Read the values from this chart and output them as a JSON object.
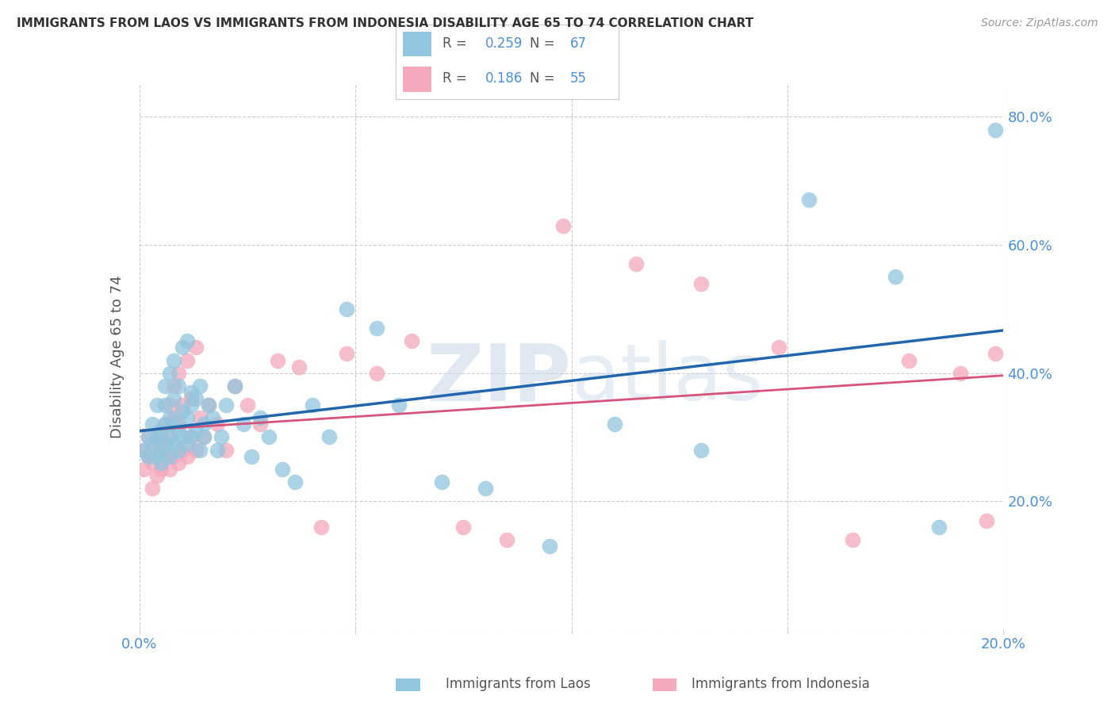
{
  "title": "IMMIGRANTS FROM LAOS VS IMMIGRANTS FROM INDONESIA DISABILITY AGE 65 TO 74 CORRELATION CHART",
  "source": "Source: ZipAtlas.com",
  "ylabel": "Disability Age 65 to 74",
  "legend_label1": "Immigrants from Laos",
  "legend_label2": "Immigrants from Indonesia",
  "R1": "0.259",
  "N1": "67",
  "R2": "0.186",
  "N2": "55",
  "color_blue": "#92c5de",
  "color_pink": "#f4a9bc",
  "color_line_blue": "#2166ac",
  "color_line_pink": "#d6547a",
  "color_axis_labels": "#4a90d9",
  "xlim": [
    0.0,
    0.2
  ],
  "ylim": [
    0.0,
    0.85
  ],
  "xticks": [
    0.0,
    0.05,
    0.1,
    0.15,
    0.2
  ],
  "yticks": [
    0.0,
    0.2,
    0.4,
    0.6,
    0.8
  ],
  "blue_x": [
    0.001,
    0.002,
    0.002,
    0.003,
    0.003,
    0.004,
    0.004,
    0.004,
    0.005,
    0.005,
    0.005,
    0.006,
    0.006,
    0.006,
    0.006,
    0.007,
    0.007,
    0.007,
    0.007,
    0.008,
    0.008,
    0.008,
    0.008,
    0.009,
    0.009,
    0.009,
    0.01,
    0.01,
    0.01,
    0.011,
    0.011,
    0.011,
    0.012,
    0.012,
    0.012,
    0.013,
    0.013,
    0.014,
    0.014,
    0.015,
    0.015,
    0.016,
    0.017,
    0.018,
    0.019,
    0.02,
    0.022,
    0.024,
    0.026,
    0.028,
    0.03,
    0.033,
    0.036,
    0.04,
    0.044,
    0.048,
    0.055,
    0.06,
    0.07,
    0.08,
    0.095,
    0.11,
    0.13,
    0.155,
    0.175,
    0.185,
    0.198
  ],
  "blue_y": [
    0.28,
    0.3,
    0.27,
    0.29,
    0.32,
    0.3,
    0.27,
    0.35,
    0.28,
    0.31,
    0.26,
    0.29,
    0.32,
    0.35,
    0.38,
    0.27,
    0.3,
    0.33,
    0.4,
    0.29,
    0.32,
    0.36,
    0.42,
    0.28,
    0.31,
    0.38,
    0.3,
    0.34,
    0.44,
    0.29,
    0.33,
    0.45,
    0.3,
    0.35,
    0.37,
    0.31,
    0.36,
    0.28,
    0.38,
    0.3,
    0.32,
    0.35,
    0.33,
    0.28,
    0.3,
    0.35,
    0.38,
    0.32,
    0.27,
    0.33,
    0.3,
    0.25,
    0.23,
    0.35,
    0.3,
    0.5,
    0.47,
    0.35,
    0.23,
    0.22,
    0.13,
    0.32,
    0.28,
    0.67,
    0.55,
    0.16,
    0.78
  ],
  "pink_x": [
    0.001,
    0.001,
    0.002,
    0.002,
    0.003,
    0.003,
    0.004,
    0.004,
    0.005,
    0.005,
    0.005,
    0.006,
    0.006,
    0.007,
    0.007,
    0.007,
    0.008,
    0.008,
    0.008,
    0.009,
    0.009,
    0.009,
    0.01,
    0.01,
    0.011,
    0.011,
    0.012,
    0.012,
    0.013,
    0.013,
    0.014,
    0.015,
    0.016,
    0.018,
    0.02,
    0.022,
    0.025,
    0.028,
    0.032,
    0.037,
    0.042,
    0.048,
    0.055,
    0.063,
    0.075,
    0.085,
    0.098,
    0.115,
    0.13,
    0.148,
    0.165,
    0.178,
    0.19,
    0.196,
    0.198
  ],
  "pink_y": [
    0.28,
    0.25,
    0.27,
    0.3,
    0.22,
    0.26,
    0.24,
    0.29,
    0.28,
    0.25,
    0.3,
    0.27,
    0.32,
    0.25,
    0.3,
    0.35,
    0.27,
    0.33,
    0.38,
    0.26,
    0.32,
    0.4,
    0.28,
    0.35,
    0.27,
    0.42,
    0.3,
    0.36,
    0.28,
    0.44,
    0.33,
    0.3,
    0.35,
    0.32,
    0.28,
    0.38,
    0.35,
    0.32,
    0.42,
    0.41,
    0.16,
    0.43,
    0.4,
    0.45,
    0.16,
    0.14,
    0.63,
    0.57,
    0.54,
    0.44,
    0.14,
    0.42,
    0.4,
    0.17,
    0.43
  ],
  "watermark_zip": "ZIP",
  "watermark_atlas": "atlas",
  "figsize": [
    14.06,
    8.92
  ],
  "dpi": 100
}
